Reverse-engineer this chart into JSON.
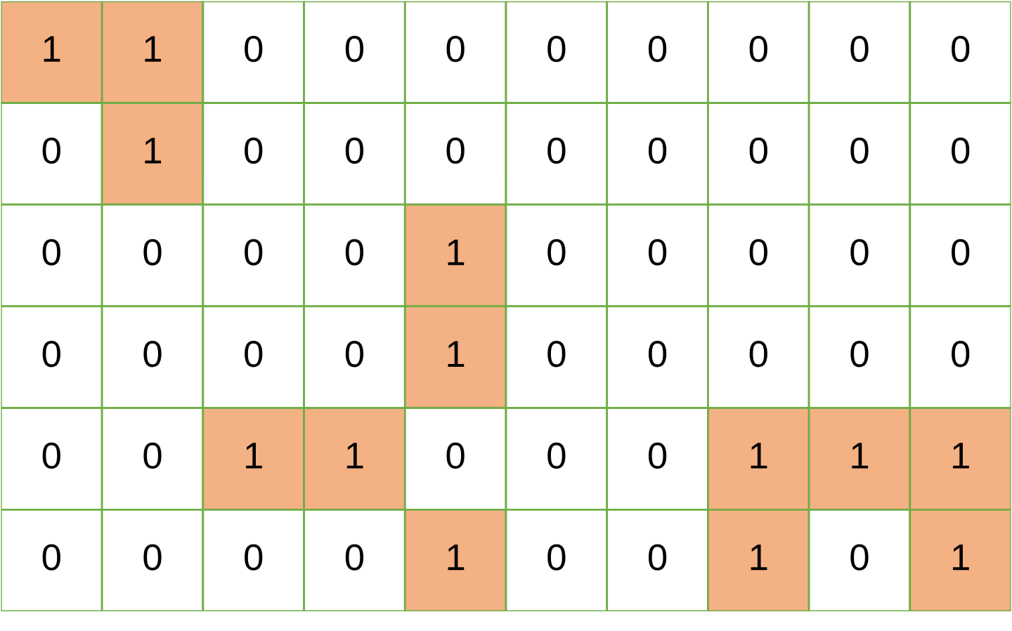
{
  "chart_data": {
    "type": "heatmap",
    "categories": [
      null,
      null,
      null,
      null,
      null,
      null,
      null,
      null,
      null,
      null
    ],
    "y_categories": [
      null,
      null,
      null,
      null,
      null,
      null
    ],
    "cells": [
      [
        1,
        1,
        0,
        0,
        0,
        0,
        0,
        0,
        0,
        0
      ],
      [
        0,
        1,
        0,
        0,
        0,
        0,
        0,
        0,
        0,
        0
      ],
      [
        0,
        0,
        0,
        0,
        1,
        0,
        0,
        0,
        0,
        0
      ],
      [
        0,
        0,
        0,
        0,
        1,
        0,
        0,
        0,
        0,
        0
      ],
      [
        0,
        0,
        1,
        1,
        0,
        0,
        0,
        1,
        1,
        1
      ],
      [
        0,
        0,
        0,
        0,
        1,
        0,
        0,
        1,
        0,
        1
      ]
    ],
    "colors": [
      "#ffffff",
      "#f4b183"
    ],
    "data_labels": true
  }
}
